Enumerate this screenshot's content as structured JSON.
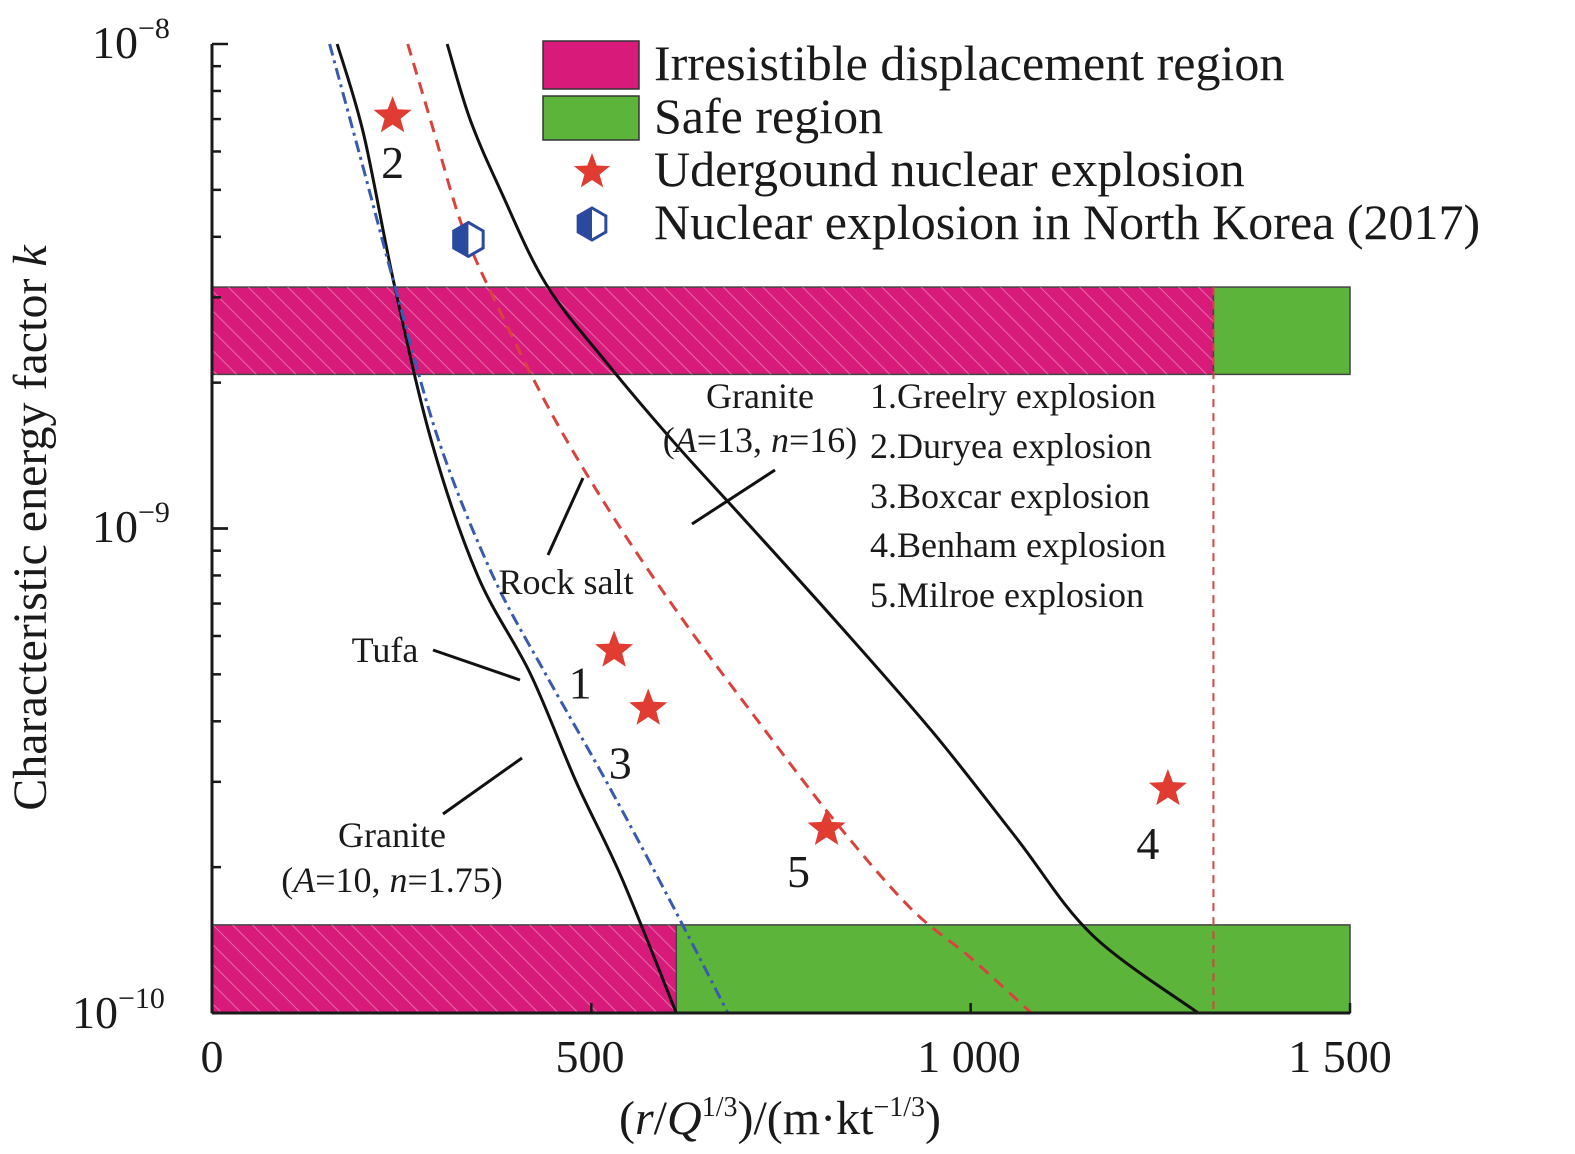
{
  "chart_data": {
    "type": "line",
    "xlabel": "(r/Q^1/3)/(m·kt^−1/3)",
    "xlabel_parts": {
      "open": "(",
      "r": "r",
      "slash": "/",
      "Q": "Q",
      "q_exp": "1/3",
      "mid": ")/(m·kt",
      "kt_exp": "−1/3",
      "close": ")"
    },
    "ylabel": "Characteristic energy factor k",
    "ylabel_parts": {
      "text": "Characteristic energy factor ",
      "k": "k"
    },
    "xlim": [
      0,
      1500
    ],
    "ylim": [
      1e-10,
      1e-08
    ],
    "y_scale": "log",
    "x_ticks": [
      {
        "value": 0,
        "label": "0"
      },
      {
        "value": 500,
        "label": "500"
      },
      {
        "value": 1000,
        "label": "1 000"
      },
      {
        "value": 1500,
        "label": "1 500"
      }
    ],
    "y_ticks": [
      {
        "value": 1e-08,
        "base": "10",
        "exp": "−8"
      },
      {
        "value": 1e-09,
        "base": "10",
        "exp": "−9"
      },
      {
        "value": 1e-10,
        "base": "10",
        "exp": "−10"
      }
    ],
    "regions": [
      {
        "kind": "irresistible",
        "x": [
          0,
          1320
        ],
        "y": [
          2.08e-09,
          3.15e-09
        ]
      },
      {
        "kind": "safe",
        "x": [
          1320,
          1500
        ],
        "y": [
          2.08e-09,
          3.15e-09
        ]
      },
      {
        "kind": "irresistible",
        "x": [
          0,
          612
        ],
        "y": [
          1e-10,
          1.52e-10
        ]
      },
      {
        "kind": "safe",
        "x": [
          612,
          1500
        ],
        "y": [
          1e-10,
          1.52e-10
        ]
      }
    ],
    "vline": {
      "x": 1320,
      "color": "#d9433f"
    },
    "curves": [
      {
        "id": "granite-10",
        "style": "solid",
        "color": "#111111",
        "points": [
          [
            165,
            1e-08
          ],
          [
            200,
            6.5e-09
          ],
          [
            240,
            3.2e-09
          ],
          [
            290,
            1.5e-09
          ],
          [
            350,
            8e-10
          ],
          [
            420,
            5e-10
          ],
          [
            480,
            3e-10
          ],
          [
            540,
            1.9e-10
          ],
          [
            612,
            1e-10
          ]
        ]
      },
      {
        "id": "tufa",
        "style": "dashdot",
        "color": "#3a5ab0",
        "points": [
          [
            155,
            1e-08
          ],
          [
            200,
            5.5e-09
          ],
          [
            245,
            3e-09
          ],
          [
            300,
            1.5e-09
          ],
          [
            370,
            8e-10
          ],
          [
            440,
            5e-10
          ],
          [
            520,
            3e-10
          ],
          [
            600,
            1.75e-10
          ],
          [
            680,
            1e-10
          ]
        ]
      },
      {
        "id": "rock-salt",
        "style": "dashed",
        "color": "#d9433f",
        "points": [
          [
            258,
            1e-08
          ],
          [
            290,
            6.8e-09
          ],
          [
            330,
            4.2e-09
          ],
          [
            380,
            2.8e-09
          ],
          [
            450,
            1.7e-09
          ],
          [
            530,
            1.05e-09
          ],
          [
            620,
            6.5e-10
          ],
          [
            720,
            4e-10
          ],
          [
            820,
            2.5e-10
          ],
          [
            920,
            1.65e-10
          ],
          [
            1000,
            1.3e-10
          ],
          [
            1080,
            1e-10
          ]
        ]
      },
      {
        "id": "granite-13",
        "style": "solid",
        "color": "#111111",
        "points": [
          [
            310,
            1e-08
          ],
          [
            340,
            7e-09
          ],
          [
            380,
            5e-09
          ],
          [
            440,
            3.2e-09
          ],
          [
            520,
            2.2e-09
          ],
          [
            610,
            1.5e-09
          ],
          [
            700,
            1.05e-09
          ],
          [
            820,
            6.5e-10
          ],
          [
            950,
            3.8e-10
          ],
          [
            1060,
            2.3e-10
          ],
          [
            1160,
            1.45e-10
          ],
          [
            1300,
            1e-10
          ]
        ]
      }
    ],
    "points": [
      {
        "id": "2",
        "label": "2",
        "marker": "star",
        "x": 238,
        "y": 7.1e-09,
        "color": "#e03c31"
      },
      {
        "id": "1",
        "label": "1",
        "marker": "star",
        "x": 530,
        "y": 5.6e-10,
        "color": "#e03c31"
      },
      {
        "id": "3",
        "label": "3",
        "marker": "star",
        "x": 575,
        "y": 4.25e-10,
        "color": "#e03c31"
      },
      {
        "id": "5",
        "label": "5",
        "marker": "star",
        "x": 810,
        "y": 2.4e-10,
        "color": "#e03c31"
      },
      {
        "id": "4",
        "label": "4",
        "marker": "star",
        "x": 1260,
        "y": 2.9e-10,
        "color": "#e03c31"
      },
      {
        "id": "nk",
        "label": "",
        "marker": "half-hexagon",
        "x": 338,
        "y": 3.95e-09,
        "color": "#2a4aa0"
      }
    ],
    "legend": {
      "position": "top-right",
      "items": [
        {
          "label": "Irresistible displacement region",
          "swatch": "rect",
          "color": "#d81b7a"
        },
        {
          "label": "Safe region",
          "swatch": "rect",
          "color": "#5db43a"
        },
        {
          "label": "Udergound nuclear explosion",
          "swatch": "star",
          "color": "#e03c31"
        },
        {
          "label": "Nuclear explosion in North Korea (2017)",
          "swatch": "half-hexagon",
          "color": "#2a4aa0"
        }
      ]
    },
    "annotations": {
      "granite13": {
        "name": "Granite",
        "params": {
          "open": "(",
          "A": "A",
          "a_val": "=13, ",
          "n": "n",
          "n_val": "=16)"
        }
      },
      "granite10": {
        "name": "Granite",
        "params": {
          "open": "(",
          "A": "A",
          "a_val": "=10, ",
          "n": "n",
          "n_val": "=1.75)"
        }
      },
      "rocksalt": "Rock salt",
      "tufa": "Tufa"
    },
    "explosion_list": [
      "1.Greelry explosion",
      "2.Duryea explosion",
      "3.Boxcar explosion",
      "4.Benham explosion",
      "5.Milroe explosion"
    ],
    "colors": {
      "irresistible": "#d81b7a",
      "safe": "#5db43a",
      "star": "#e03c31",
      "north_korea": "#2a4aa0",
      "axis": "#1a1a1a"
    }
  }
}
